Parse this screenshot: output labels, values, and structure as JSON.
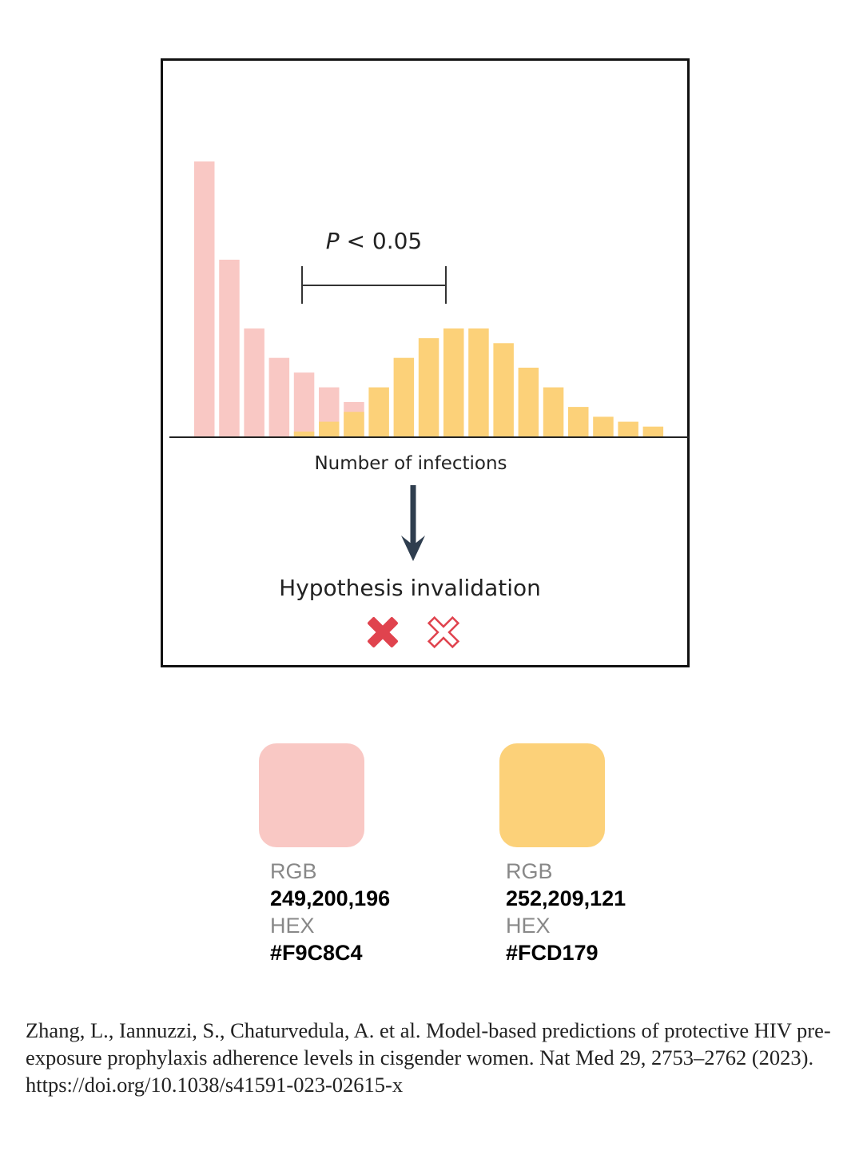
{
  "chart_data": {
    "type": "bar",
    "xlabel": "Number of infections",
    "series": [
      {
        "color": "#F9C8C4",
        "values": [
          28,
          18,
          11,
          8,
          6.5,
          5,
          3.5,
          0,
          0,
          0,
          0,
          0,
          0,
          0,
          0,
          0,
          0,
          0,
          0,
          0
        ]
      },
      {
        "color": "#FCD179",
        "values": [
          0,
          0,
          0,
          0,
          0.5,
          1.5,
          2.5,
          5,
          8,
          10,
          11,
          11,
          9.5,
          7,
          5,
          3,
          2,
          1.5,
          1,
          0
        ]
      }
    ],
    "annotation": {
      "text_italic": "P",
      "text_rest": " < 0.05"
    }
  },
  "flow": {
    "result_label": "Hypothesis invalidation",
    "icons": [
      "cross-solid-icon",
      "cross-outline-icon"
    ],
    "arrow_color": "#2F3E4F",
    "cross_color": "#E0434E"
  },
  "swatches": [
    {
      "color": "#F9C8C4",
      "rgb_label": "RGB",
      "rgb_value": "249,200,196",
      "hex_label": "HEX",
      "hex_value": "#F9C8C4"
    },
    {
      "color": "#FCD179",
      "rgb_label": "RGB",
      "rgb_value": "252,209,121",
      "hex_label": "HEX",
      "hex_value": "#FCD179"
    }
  ],
  "citation": "Zhang, L., Iannuzzi, S., Chaturvedula, A. et al. Model-based predictions of protective HIV pre-exposure prophylaxis adherence levels in cisgender women. Nat Med 29, 2753–2762 (2023). https://doi.org/10.1038/s41591-023-02615-x"
}
